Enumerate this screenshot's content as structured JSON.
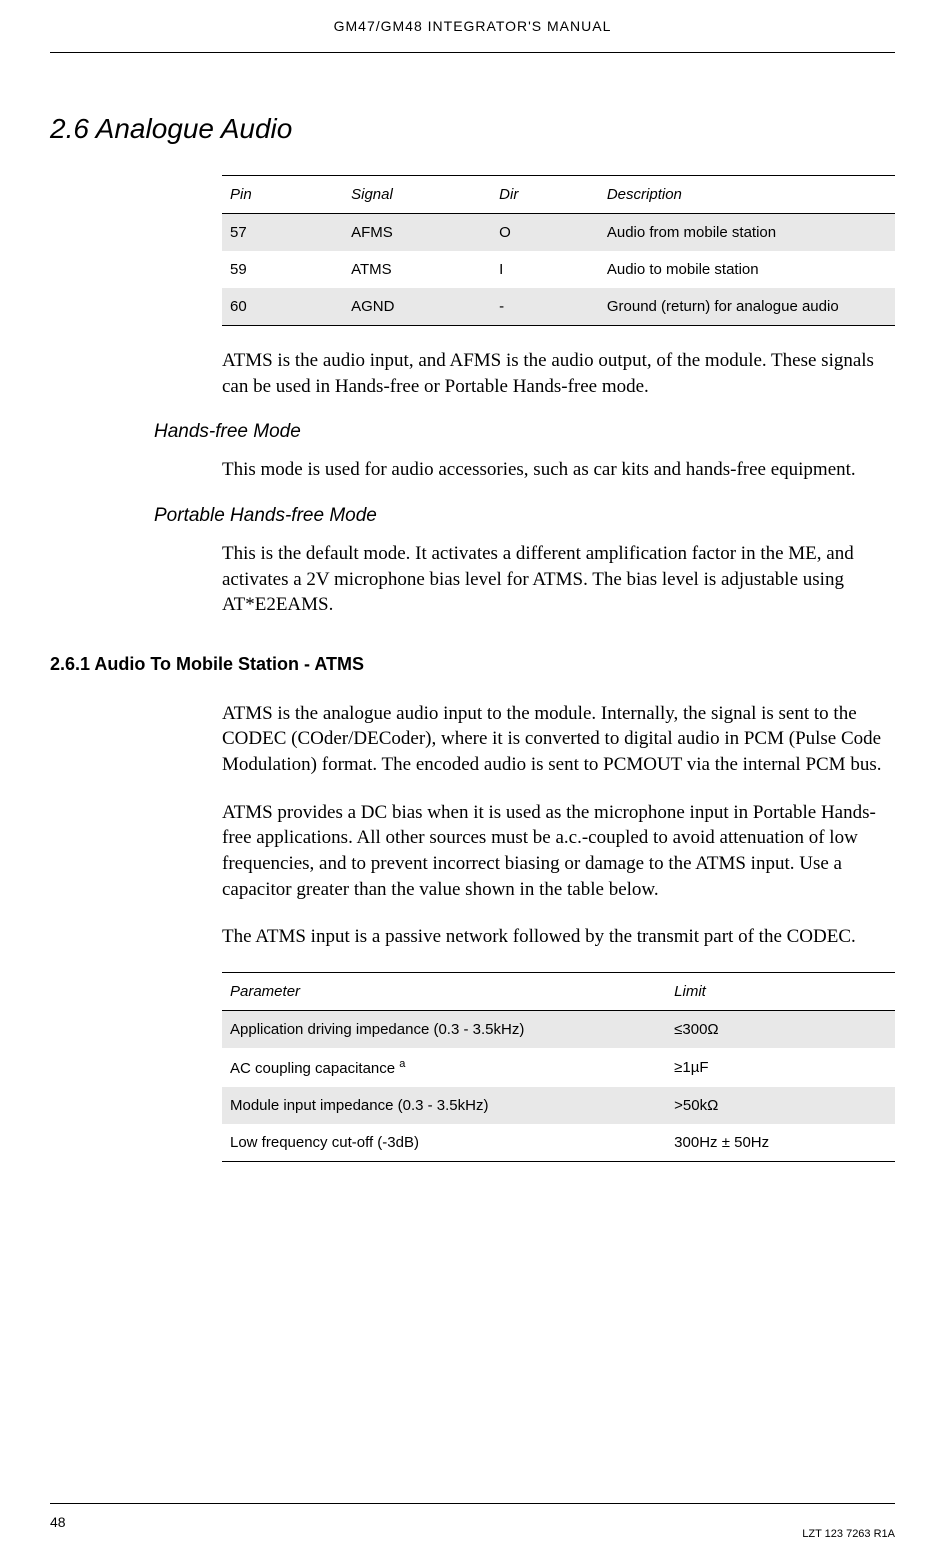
{
  "header": {
    "title": "GM47/GM48 INTEGRATOR'S MANUAL"
  },
  "section": {
    "number_title": "2.6 Analogue Audio"
  },
  "table1": {
    "columns": [
      "Pin",
      "Signal",
      "Dir",
      "Description"
    ],
    "rows": [
      {
        "pin": "57",
        "signal": "AFMS",
        "dir": "O",
        "desc": "Audio from mobile station"
      },
      {
        "pin": "59",
        "signal": "ATMS",
        "dir": "I",
        "desc": "Audio to mobile station"
      },
      {
        "pin": "60",
        "signal": "AGND",
        "dir": "-",
        "desc": "Ground (return) for analogue audio"
      }
    ]
  },
  "paragraphs": {
    "p1": "ATMS is the audio input, and AFMS is the audio output, of the module. These signals can be used in Hands-free or Portable Hands-free mode.",
    "hf_title": "Hands-free Mode",
    "p2": "This mode is used for audio accessories, such as car kits and hands-free equipment.",
    "phf_title": "Portable Hands-free Mode",
    "p3": "This is the default mode. It activates a different amplification factor in the ME, and activates a 2V microphone bias level for ATMS. The bias level is adjustable using AT*E2EAMS.",
    "sub_title": "2.6.1 Audio To Mobile Station - ATMS",
    "p4": "ATMS is the analogue audio input to the module. Internally, the signal is sent to the CODEC (COder/DECoder), where it is converted to digital audio in PCM (Pulse Code Modulation) format. The encoded audio is sent to PCMOUT via the internal PCM bus.",
    "p5": "ATMS provides a DC bias when it is used as the microphone input in Portable Hands-free applications. All other sources must be a.c.-coupled to avoid attenuation of low frequencies, and to prevent incorrect biasing or damage to the ATMS input. Use a capacitor greater than the value shown in the table below.",
    "p6": "The ATMS input is a passive network followed by the transmit part of the CODEC."
  },
  "table2": {
    "columns": [
      "Parameter",
      "Limit"
    ],
    "rows": [
      {
        "param": "Application driving impedance (0.3 - 3.5kHz)",
        "limit": "≤300Ω"
      },
      {
        "param": "AC coupling capacitance",
        "sup": "a",
        "limit": "≥1µF"
      },
      {
        "param": "Module input impedance (0.3 - 3.5kHz)",
        "limit": ">50kΩ"
      },
      {
        "param": "Low frequency cut-off (-3dB)",
        "limit": "300Hz ± 50Hz"
      }
    ]
  },
  "footer": {
    "page": "48",
    "docref": "LZT 123 7263 R1A"
  }
}
